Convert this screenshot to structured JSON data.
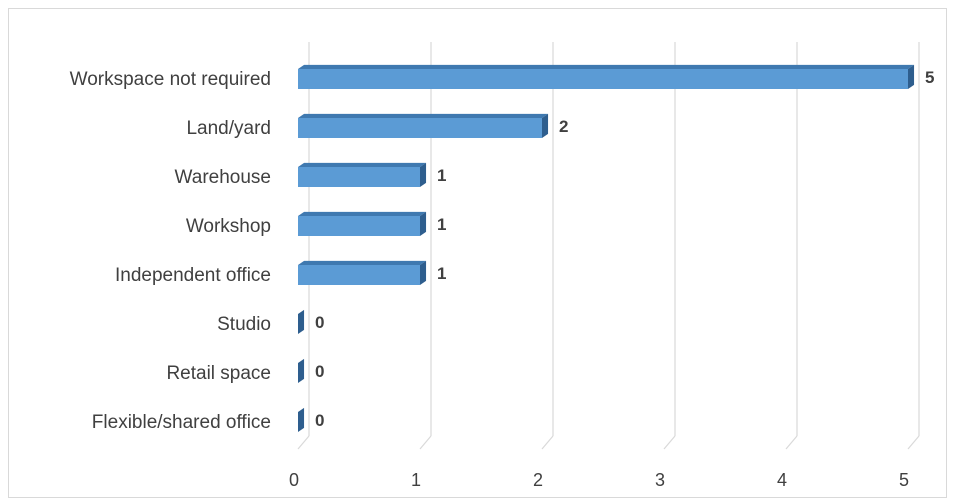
{
  "chart_data": {
    "type": "bar",
    "orientation": "horizontal",
    "style": "3d-clustered",
    "categories": [
      "Workspace not required",
      "Land/yard",
      "Warehouse",
      "Workshop",
      "Independent office",
      "Studio",
      "Retail space",
      "Flexible/shared office"
    ],
    "values": [
      5,
      2,
      1,
      1,
      1,
      0,
      0,
      0
    ],
    "data_labels": [
      "5",
      "2",
      "1",
      "1",
      "1",
      "0",
      "0",
      "0"
    ],
    "xlim": [
      0,
      5
    ],
    "x_ticks": [
      "0",
      "1",
      "2",
      "3",
      "4",
      "5"
    ],
    "grid": true,
    "legend": "none",
    "colors": {
      "bar_front": "#5b9bd5",
      "bar_top": "#3f79b0",
      "bar_side": "#2e5e8e",
      "gridline": "#d9d9d9",
      "text": "#404040"
    }
  }
}
